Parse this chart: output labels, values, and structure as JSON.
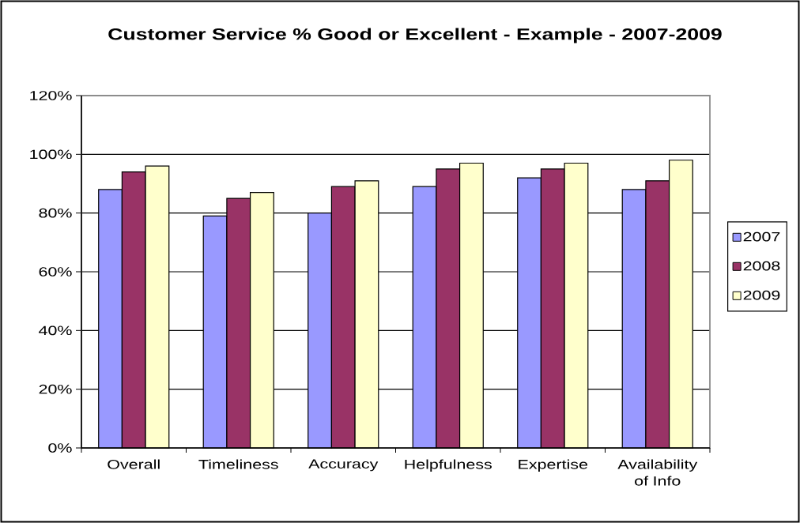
{
  "chart_data": {
    "type": "bar",
    "title": "Customer Service % Good or Excellent - Example - 2007-2009",
    "categories": [
      "Overall",
      "Timeliness",
      "Accuracy",
      "Helpfulness",
      "Expertise",
      "Availability of Info"
    ],
    "series": [
      {
        "name": "2007",
        "color": "#9999ff",
        "values": [
          88,
          79,
          80,
          89,
          92,
          88
        ]
      },
      {
        "name": "2008",
        "color": "#993366",
        "values": [
          94,
          85,
          89,
          95,
          95,
          91
        ]
      },
      {
        "name": "2009",
        "color": "#ffffcc",
        "values": [
          96,
          87,
          91,
          97,
          97,
          98
        ]
      }
    ],
    "ylim": [
      0,
      120
    ],
    "yticks": [
      {
        "value": 0,
        "label": "0%"
      },
      {
        "value": 20,
        "label": "20%"
      },
      {
        "value": 40,
        "label": "40%"
      },
      {
        "value": 60,
        "label": "60%"
      },
      {
        "value": 80,
        "label": "80%"
      },
      {
        "value": 100,
        "label": "100%"
      },
      {
        "value": 120,
        "label": "120%"
      }
    ],
    "grid": "y",
    "legend": "right"
  }
}
